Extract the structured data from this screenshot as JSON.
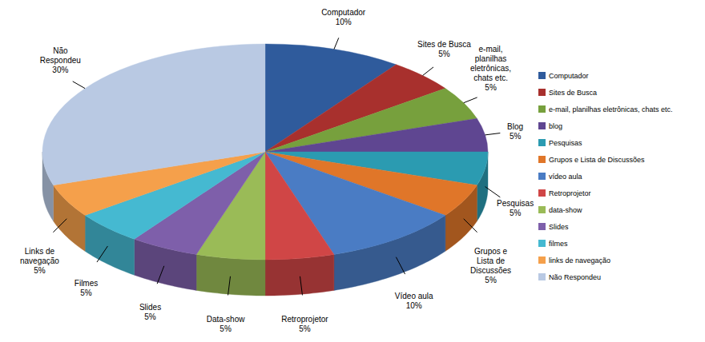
{
  "chart_data": {
    "type": "pie",
    "categories": [
      "Computador",
      "Sites de Busca",
      "e-mail, planilhas eletrônicas, chats etc.",
      "Blog",
      "Pesquisas",
      "Grupos e Lista de Discussões",
      "Vídeo aula",
      "Retroprojetor",
      "Data-show",
      "Slides",
      "Filmes",
      "Links de navegação",
      "Não Respondeu"
    ],
    "legend_labels": [
      "Computador",
      "Sites de Busca",
      "e-mail, planilhas eletrônicas, chats etc.",
      "blog",
      "Pesquisas",
      "Grupos e Lista de Discussões",
      "vídeo aula",
      "Retroprojetor",
      "data-show",
      "Slides",
      "filmes",
      "links de navegação",
      "Não Respondeu"
    ],
    "values": [
      10,
      5,
      5,
      5,
      5,
      5,
      10,
      5,
      5,
      5,
      5,
      5,
      30
    ],
    "value_labels": [
      "10%",
      "5%",
      "5%",
      "5%",
      "5%",
      "5%",
      "10%",
      "5%",
      "5%",
      "5%",
      "5%",
      "5%",
      "30%"
    ],
    "colors": [
      "#2f5b9c",
      "#a8302d",
      "#77a03d",
      "#5f4691",
      "#2b9bb1",
      "#e07629",
      "#4a7cc4",
      "#d04646",
      "#9abb57",
      "#7e5faa",
      "#45b9d1",
      "#f5a04b",
      "#b9c9e3"
    ],
    "legend": "right",
    "data_labels": true
  }
}
